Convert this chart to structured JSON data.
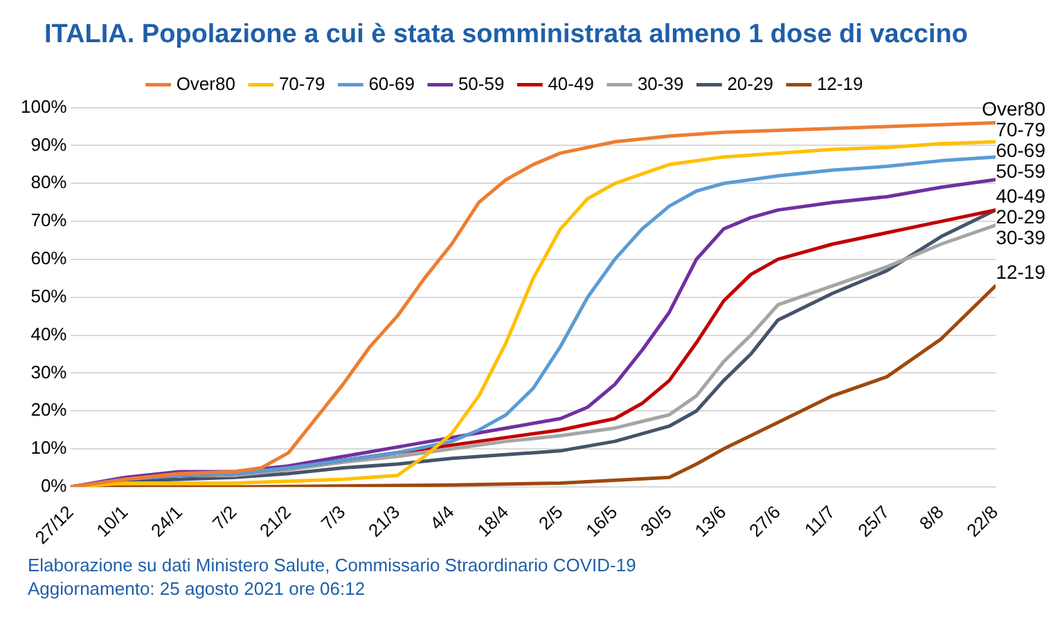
{
  "chart_data": {
    "type": "line",
    "title": "ITALIA. Popolazione a cui è stata somministrata almeno 1 dose di vaccino",
    "annotations": [
      "Elaborazione su dati Ministero Salute, Commissario Straordinario COVID-19",
      "Aggiornamento: 25 agosto 2021 ore 06:12"
    ],
    "xlim": [
      "2020-12-27",
      "2021-08-22"
    ],
    "xticks": [
      {
        "value": "2020-12-27",
        "label": "27/12"
      },
      {
        "value": "2021-01-10",
        "label": "10/1"
      },
      {
        "value": "2021-01-24",
        "label": "24/1"
      },
      {
        "value": "2021-02-07",
        "label": "7/2"
      },
      {
        "value": "2021-02-21",
        "label": "21/2"
      },
      {
        "value": "2021-03-07",
        "label": "7/3"
      },
      {
        "value": "2021-03-21",
        "label": "21/3"
      },
      {
        "value": "2021-04-04",
        "label": "4/4"
      },
      {
        "value": "2021-04-18",
        "label": "18/4"
      },
      {
        "value": "2021-05-02",
        "label": "2/5"
      },
      {
        "value": "2021-05-16",
        "label": "16/5"
      },
      {
        "value": "2021-05-30",
        "label": "30/5"
      },
      {
        "value": "2021-06-13",
        "label": "13/6"
      },
      {
        "value": "2021-06-27",
        "label": "27/6"
      },
      {
        "value": "2021-07-11",
        "label": "11/7"
      },
      {
        "value": "2021-07-25",
        "label": "25/7"
      },
      {
        "value": "2021-08-08",
        "label": "8/8"
      },
      {
        "value": "2021-08-22",
        "label": "22/8"
      }
    ],
    "ylim": [
      0,
      100
    ],
    "yticks": [
      {
        "value": 0,
        "label": "0%"
      },
      {
        "value": 10,
        "label": "10%"
      },
      {
        "value": 20,
        "label": "20%"
      },
      {
        "value": 30,
        "label": "30%"
      },
      {
        "value": 40,
        "label": "40%"
      },
      {
        "value": 50,
        "label": "50%"
      },
      {
        "value": 60,
        "label": "60%"
      },
      {
        "value": 70,
        "label": "70%"
      },
      {
        "value": 80,
        "label": "80%"
      },
      {
        "value": 90,
        "label": "90%"
      },
      {
        "value": 100,
        "label": "100%"
      }
    ],
    "grid": "y",
    "legend": "top",
    "marker": "none",
    "line_style": "solid",
    "series": [
      {
        "name": "Over80",
        "color": "#ed7d31",
        "x": [
          "2020-12-27",
          "2021-01-10",
          "2021-01-24",
          "2021-02-07",
          "2021-02-14",
          "2021-02-21",
          "2021-02-28",
          "2021-03-07",
          "2021-03-14",
          "2021-03-21",
          "2021-03-28",
          "2021-04-04",
          "2021-04-11",
          "2021-04-18",
          "2021-04-25",
          "2021-05-02",
          "2021-05-16",
          "2021-05-30",
          "2021-06-13",
          "2021-06-27",
          "2021-07-11",
          "2021-07-25",
          "2021-08-08",
          "2021-08-22"
        ],
        "values": [
          0,
          2,
          3.5,
          4,
          5,
          9,
          18,
          27,
          37,
          45,
          55,
          64,
          75,
          81,
          85,
          88,
          91,
          92.5,
          93.5,
          94,
          94.5,
          95,
          95.5,
          96
        ]
      },
      {
        "name": "70-79",
        "color": "#ffc000",
        "x": [
          "2020-12-27",
          "2021-01-10",
          "2021-02-07",
          "2021-03-07",
          "2021-03-21",
          "2021-03-28",
          "2021-04-04",
          "2021-04-11",
          "2021-04-18",
          "2021-04-25",
          "2021-05-02",
          "2021-05-09",
          "2021-05-16",
          "2021-05-30",
          "2021-06-13",
          "2021-06-27",
          "2021-07-11",
          "2021-07-25",
          "2021-08-08",
          "2021-08-22"
        ],
        "values": [
          0,
          1,
          1,
          2,
          3,
          8,
          14,
          24,
          38,
          55,
          68,
          76,
          80,
          85,
          87,
          88,
          89,
          89.5,
          90.5,
          91
        ]
      },
      {
        "name": "60-69",
        "color": "#5b9bd5",
        "x": [
          "2020-12-27",
          "2021-01-10",
          "2021-01-24",
          "2021-02-07",
          "2021-02-21",
          "2021-03-07",
          "2021-03-21",
          "2021-04-04",
          "2021-04-11",
          "2021-04-18",
          "2021-04-25",
          "2021-05-02",
          "2021-05-09",
          "2021-05-16",
          "2021-05-23",
          "2021-05-30",
          "2021-06-06",
          "2021-06-13",
          "2021-06-27",
          "2021-07-11",
          "2021-07-25",
          "2021-08-08",
          "2021-08-22"
        ],
        "values": [
          0,
          2,
          3,
          3.5,
          5,
          7,
          9,
          12,
          15,
          19,
          26,
          37,
          50,
          60,
          68,
          74,
          78,
          80,
          82,
          83.5,
          84.5,
          86,
          87
        ]
      },
      {
        "name": "50-59",
        "color": "#7030a0",
        "x": [
          "2020-12-27",
          "2021-01-10",
          "2021-01-24",
          "2021-02-07",
          "2021-02-21",
          "2021-03-07",
          "2021-03-21",
          "2021-04-04",
          "2021-04-18",
          "2021-05-02",
          "2021-05-09",
          "2021-05-16",
          "2021-05-23",
          "2021-05-30",
          "2021-06-06",
          "2021-06-13",
          "2021-06-20",
          "2021-06-27",
          "2021-07-11",
          "2021-07-25",
          "2021-08-08",
          "2021-08-22"
        ],
        "values": [
          0,
          2.5,
          4,
          4,
          5.5,
          8,
          10.5,
          13,
          15.5,
          18,
          21,
          27,
          36,
          46,
          60,
          68,
          71,
          73,
          75,
          76.5,
          79,
          81
        ]
      },
      {
        "name": "40-49",
        "color": "#c00000",
        "x": [
          "2020-12-27",
          "2021-01-10",
          "2021-01-24",
          "2021-02-07",
          "2021-02-21",
          "2021-03-07",
          "2021-03-21",
          "2021-04-04",
          "2021-04-18",
          "2021-05-02",
          "2021-05-16",
          "2021-05-23",
          "2021-05-30",
          "2021-06-06",
          "2021-06-13",
          "2021-06-20",
          "2021-06-27",
          "2021-07-11",
          "2021-07-25",
          "2021-08-08",
          "2021-08-22"
        ],
        "values": [
          0,
          2,
          3,
          3.5,
          5,
          7,
          9,
          11,
          13,
          15,
          18,
          22,
          28,
          38,
          49,
          56,
          60,
          64,
          67,
          70,
          73
        ]
      },
      {
        "name": "30-39",
        "color": "#a5a5a5",
        "x": [
          "2020-12-27",
          "2021-01-10",
          "2021-01-24",
          "2021-02-07",
          "2021-02-21",
          "2021-03-07",
          "2021-03-21",
          "2021-04-04",
          "2021-04-18",
          "2021-05-02",
          "2021-05-16",
          "2021-05-30",
          "2021-06-06",
          "2021-06-13",
          "2021-06-20",
          "2021-06-27",
          "2021-07-11",
          "2021-07-25",
          "2021-08-08",
          "2021-08-22"
        ],
        "values": [
          0,
          2,
          3,
          3,
          4.5,
          6.5,
          8,
          10,
          12,
          13.5,
          15.5,
          19,
          24,
          33,
          40,
          48,
          53,
          58,
          64,
          69
        ]
      },
      {
        "name": "20-29",
        "color": "#44546a",
        "x": [
          "2020-12-27",
          "2021-01-10",
          "2021-01-24",
          "2021-02-07",
          "2021-02-21",
          "2021-03-07",
          "2021-03-21",
          "2021-04-04",
          "2021-04-18",
          "2021-05-02",
          "2021-05-16",
          "2021-05-30",
          "2021-06-06",
          "2021-06-13",
          "2021-06-20",
          "2021-06-27",
          "2021-07-11",
          "2021-07-25",
          "2021-08-08",
          "2021-08-22"
        ],
        "values": [
          0,
          1.5,
          2,
          2.5,
          3.5,
          5,
          6,
          7.5,
          8.5,
          9.5,
          12,
          16,
          20,
          28,
          35,
          44,
          51,
          57,
          66,
          73
        ]
      },
      {
        "name": "12-19",
        "color": "#9e480e",
        "x": [
          "2020-12-27",
          "2021-02-07",
          "2021-04-04",
          "2021-05-02",
          "2021-05-30",
          "2021-06-06",
          "2021-06-13",
          "2021-06-27",
          "2021-07-11",
          "2021-07-25",
          "2021-08-08",
          "2021-08-22"
        ],
        "values": [
          0,
          0,
          0.5,
          1,
          2.5,
          6,
          10,
          17,
          24,
          29,
          39,
          53
        ]
      }
    ]
  }
}
